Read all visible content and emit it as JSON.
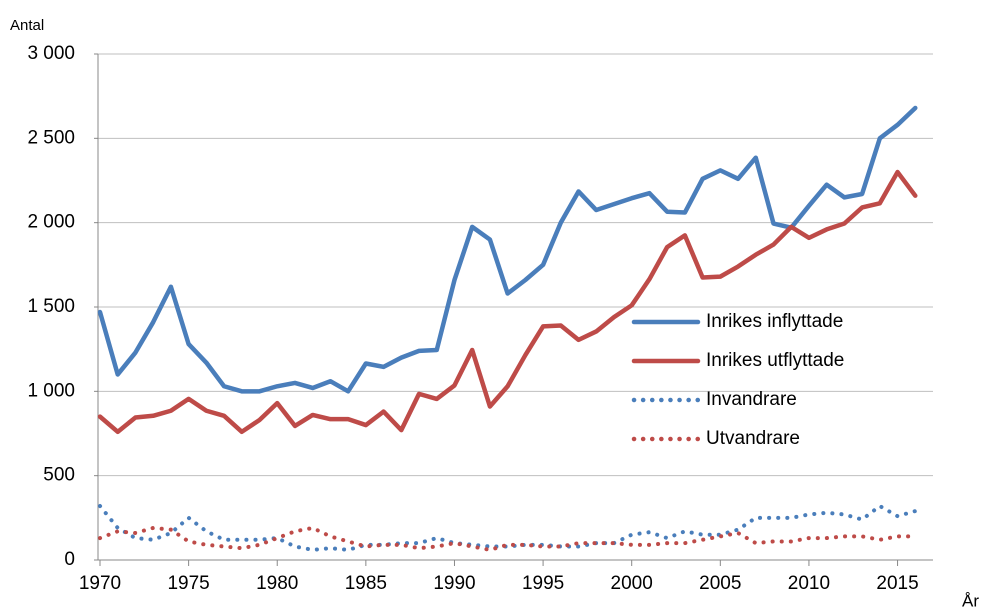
{
  "chart_data": {
    "type": "line",
    "y_label": "Antal",
    "x_label": "År",
    "x": [
      1970,
      1971,
      1972,
      1973,
      1974,
      1975,
      1976,
      1977,
      1978,
      1979,
      1980,
      1981,
      1982,
      1983,
      1984,
      1985,
      1986,
      1987,
      1988,
      1989,
      1990,
      1991,
      1992,
      1993,
      1994,
      1995,
      1996,
      1997,
      1998,
      1999,
      2000,
      2001,
      2002,
      2003,
      2004,
      2005,
      2006,
      2007,
      2008,
      2009,
      2010,
      2011,
      2012,
      2013,
      2014,
      2015,
      2016
    ],
    "series": [
      {
        "name": "Inrikes inflyttade",
        "color": "#4a7ebb",
        "line_style": "solid",
        "values": [
          1470,
          1100,
          1230,
          1410,
          1620,
          1280,
          1170,
          1030,
          1000,
          1000,
          1030,
          1050,
          1020,
          1060,
          1000,
          1165,
          1145,
          1200,
          1240,
          1245,
          1660,
          1975,
          1900,
          1580,
          1660,
          1750,
          2000,
          2185,
          2075,
          2110,
          2145,
          2175,
          2065,
          2060,
          2260,
          2310,
          2260,
          2385,
          1995,
          1970,
          2100,
          2225,
          2150,
          2170,
          2500,
          2580,
          2680
        ]
      },
      {
        "name": "Inrikes utflyttade",
        "color": "#be4b48",
        "line_style": "solid",
        "values": [
          850,
          760,
          845,
          855,
          885,
          955,
          885,
          855,
          760,
          830,
          930,
          795,
          860,
          835,
          835,
          800,
          880,
          770,
          985,
          955,
          1035,
          1245,
          910,
          1030,
          1215,
          1385,
          1390,
          1305,
          1355,
          1440,
          1510,
          1665,
          1855,
          1925,
          1675,
          1680,
          1740,
          1810,
          1870,
          1975,
          1910,
          1960,
          1995,
          2090,
          2115,
          2300,
          2160
        ]
      },
      {
        "name": "Invandrare",
        "color": "#4a7ebb",
        "line_style": "dotted",
        "values": [
          320,
          190,
          130,
          120,
          160,
          250,
          170,
          120,
          120,
          120,
          130,
          80,
          60,
          70,
          60,
          90,
          90,
          100,
          100,
          130,
          100,
          90,
          80,
          80,
          90,
          90,
          80,
          80,
          100,
          100,
          150,
          165,
          130,
          170,
          150,
          150,
          180,
          250,
          250,
          250,
          270,
          280,
          270,
          240,
          320,
          260,
          290
        ]
      },
      {
        "name": "Utvandrare",
        "color": "#be4b48",
        "line_style": "dotted",
        "values": [
          130,
          170,
          160,
          190,
          180,
          110,
          90,
          80,
          70,
          90,
          130,
          170,
          190,
          140,
          110,
          80,
          90,
          90,
          70,
          80,
          100,
          80,
          60,
          90,
          90,
          80,
          80,
          100,
          100,
          100,
          90,
          90,
          100,
          100,
          120,
          140,
          160,
          100,
          110,
          110,
          130,
          130,
          140,
          140,
          120,
          140,
          140
        ]
      }
    ],
    "xlim": [
      1970,
      2017
    ],
    "xticks": [
      1970,
      1975,
      1980,
      1985,
      1990,
      1995,
      2000,
      2005,
      2010,
      2015
    ],
    "ylim": [
      0,
      3000
    ],
    "yticks": [
      0,
      500,
      {
        "value": 1000,
        "label": "1 000"
      },
      {
        "value": 1500,
        "label": "1 500"
      },
      {
        "value": 2000,
        "label": "2 000"
      },
      {
        "value": 2500,
        "label": "2 500"
      },
      {
        "value": 3000,
        "label": "3 000"
      }
    ],
    "grid": true,
    "legend": "right"
  }
}
